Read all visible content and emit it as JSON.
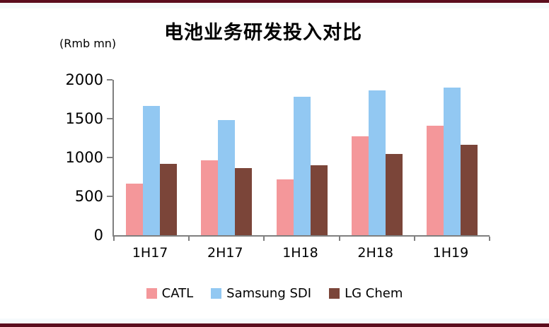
{
  "frame": {
    "border_color": "#5C0E1E",
    "strip_color": "#F6FAFC",
    "axis_color": "#7f7f7f"
  },
  "chart_data": {
    "type": "bar",
    "title": "电池业务研发投入对比",
    "ylabel": "(Rmb mn)",
    "xlabel": "",
    "categories": [
      "1H17",
      "2H17",
      "1H18",
      "2H18",
      "1H19"
    ],
    "series": [
      {
        "name": "CATL",
        "color": "#F4979A",
        "values": [
          660,
          960,
          720,
          1270,
          1410
        ]
      },
      {
        "name": "Samsung SDI",
        "color": "#92C8F2",
        "values": [
          1660,
          1480,
          1780,
          1860,
          1900
        ]
      },
      {
        "name": "LG Chem",
        "color": "#7B4539",
        "values": [
          920,
          860,
          900,
          1050,
          1160
        ]
      }
    ],
    "ylim": [
      0,
      2000
    ],
    "yticks": [
      0,
      500,
      1000,
      1500,
      2000
    ],
    "grid": false,
    "legend_position": "bottom"
  }
}
